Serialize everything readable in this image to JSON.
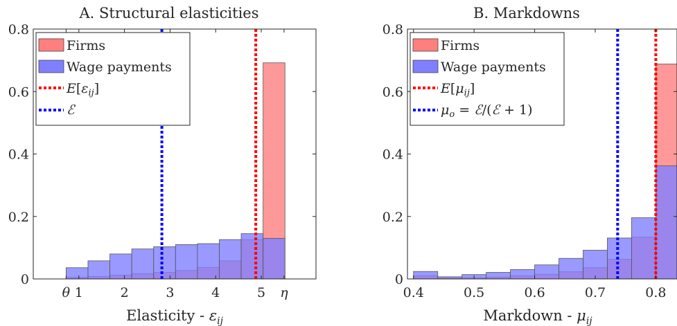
{
  "chart_data": [
    {
      "type": "bar",
      "title": "A. Structural elasticities",
      "xlabel": "Elasticity - εᵢⱼ",
      "ylabel": "",
      "xlim": [
        0.0,
        6.2
      ],
      "ylim": [
        0,
        0.8
      ],
      "yticks": [
        "0",
        "0.2",
        "0.4",
        "0.6",
        "0.8"
      ],
      "xticks": [
        {
          "label": "θ",
          "x": 0.72
        },
        {
          "label": "1",
          "x": 1.0
        },
        {
          "label": "2",
          "x": 2.0
        },
        {
          "label": "3",
          "x": 3.0
        },
        {
          "label": "4",
          "x": 4.0
        },
        {
          "label": "5",
          "x": 5.0
        },
        {
          "label": "η",
          "x": 5.5
        }
      ],
      "bin_edges": [
        0.72,
        1.2,
        1.68,
        2.16,
        2.64,
        3.12,
        3.6,
        4.08,
        4.56,
        5.04,
        5.52
      ],
      "series": [
        {
          "name": "Firms",
          "color": "#ff7f7f",
          "values": [
            0.005,
            0.008,
            0.012,
            0.017,
            0.021,
            0.027,
            0.037,
            0.058,
            0.126,
            0.692
          ]
        },
        {
          "name": "Wage payments",
          "color": "#7f7fff",
          "values": [
            0.036,
            0.058,
            0.08,
            0.096,
            0.103,
            0.11,
            0.113,
            0.126,
            0.145,
            0.13
          ]
        }
      ],
      "vlines": [
        {
          "name": "E[εᵢⱼ]",
          "x": 4.88,
          "color": "#ff0000"
        },
        {
          "name": "ℰ",
          "x": 2.82,
          "color": "#0000ff"
        }
      ],
      "legend": {
        "placement": "top-left"
      }
    },
    {
      "type": "bar",
      "title": "B. Markdowns",
      "xlabel": "Markdown - μᵢⱼ",
      "ylabel": "",
      "xlim": [
        0.39,
        0.835
      ],
      "ylim": [
        0,
        0.8
      ],
      "yticks": [
        "0",
        "0.2",
        "0.4",
        "0.6",
        "0.8"
      ],
      "xticks": [
        {
          "label": "0.4",
          "x": 0.4
        },
        {
          "label": "0.5",
          "x": 0.5
        },
        {
          "label": "0.6",
          "x": 0.6
        },
        {
          "label": "0.7",
          "x": 0.7
        },
        {
          "label": "0.8",
          "x": 0.8
        }
      ],
      "bin_edges": [
        0.4,
        0.44,
        0.48,
        0.52,
        0.56,
        0.6,
        0.64,
        0.68,
        0.72,
        0.76,
        0.8,
        0.84
      ],
      "series": [
        {
          "name": "Firms",
          "color": "#ff7f7f",
          "values": [
            0.01,
            0.003,
            0.004,
            0.006,
            0.01,
            0.015,
            0.023,
            0.036,
            0.063,
            0.134,
            0.688
          ]
        },
        {
          "name": "Wage payments",
          "color": "#7f7fff",
          "values": [
            0.024,
            0.007,
            0.014,
            0.021,
            0.03,
            0.045,
            0.066,
            0.092,
            0.131,
            0.196,
            0.362
          ]
        }
      ],
      "vlines": [
        {
          "name": "E[μᵢⱼ]",
          "x": 0.8,
          "color": "#ff0000"
        },
        {
          "name": "μₒ = ℰ/(ℰ + 1)",
          "x": 0.737,
          "color": "#0000ff"
        }
      ],
      "legend": {
        "placement": "top-left"
      }
    }
  ]
}
